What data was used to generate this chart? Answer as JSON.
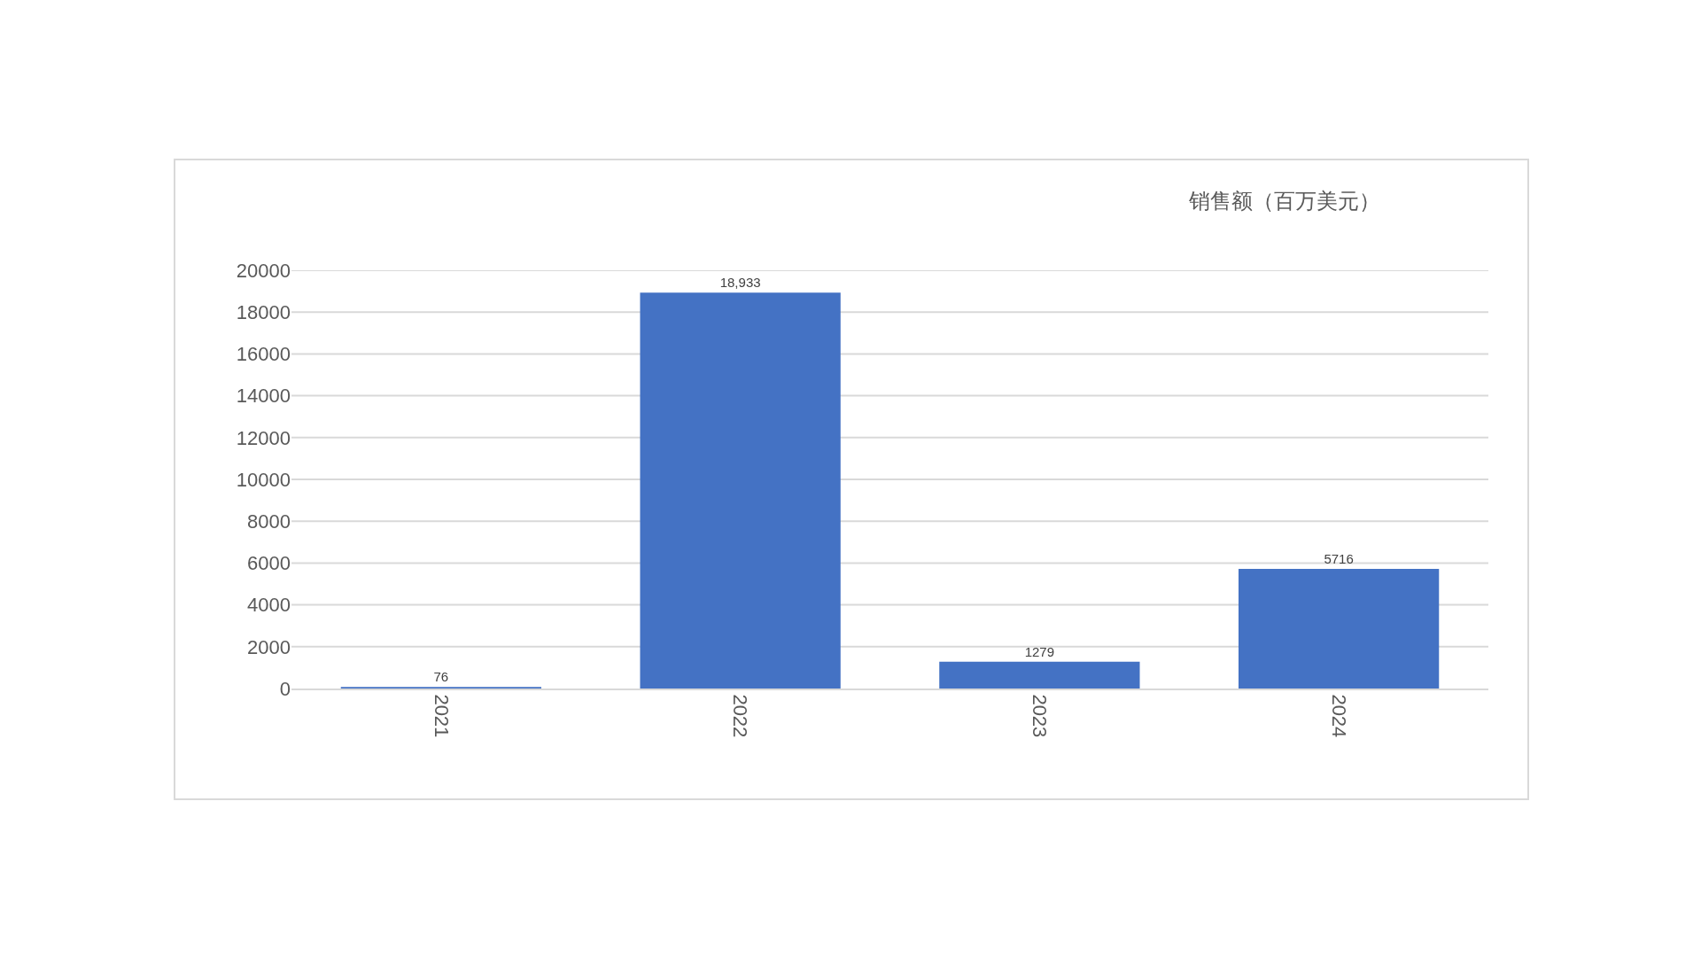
{
  "chart_data": {
    "type": "bar",
    "title": "销售额（百万美元）",
    "categories": [
      "2021",
      "2022",
      "2023",
      "2024"
    ],
    "values": [
      76,
      18933,
      1279,
      5716
    ],
    "value_labels": [
      "76",
      "18,933",
      "1279",
      "5716"
    ],
    "color": "#4472c4",
    "ylim": [
      0,
      20000
    ],
    "yticks": [
      0,
      2000,
      4000,
      6000,
      8000,
      10000,
      12000,
      14000,
      16000,
      18000,
      20000
    ],
    "grid": "y"
  }
}
